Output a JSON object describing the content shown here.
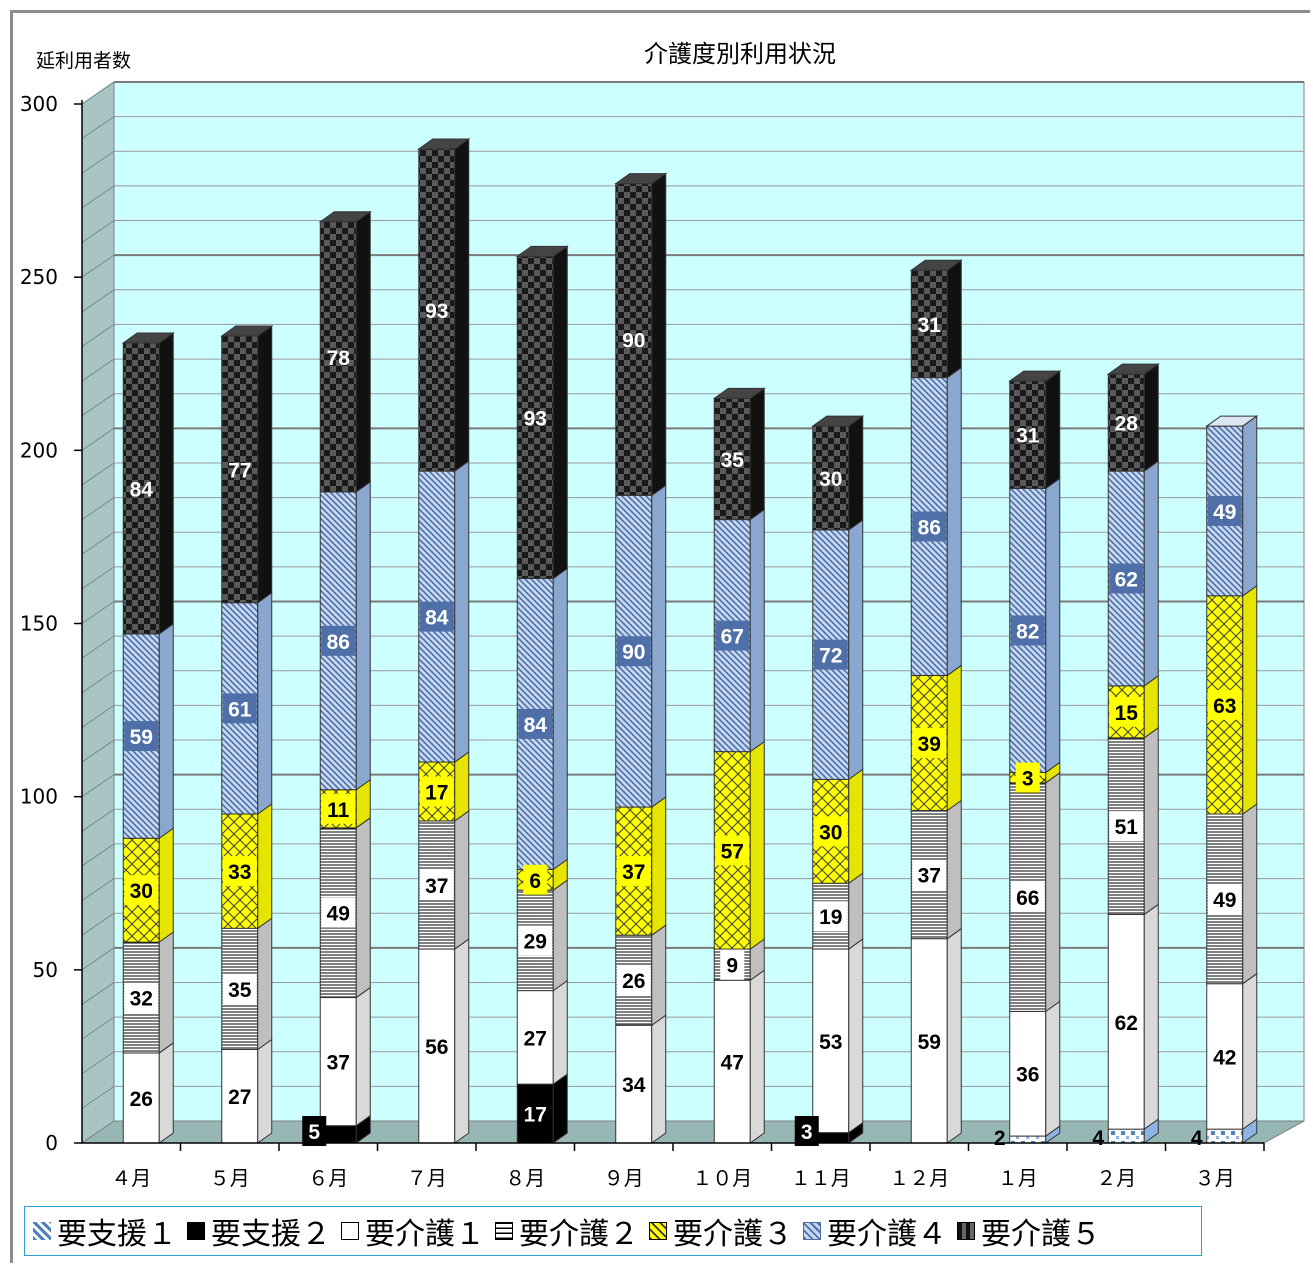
{
  "chart_data": {
    "type": "bar",
    "stacked": true,
    "title": "介護度別利用状況",
    "ylabel": "延利用者数",
    "ylim": [
      0,
      300
    ],
    "yticks": [
      0,
      50,
      100,
      150,
      200,
      250,
      300
    ],
    "grid": true,
    "legend_position": "bottom",
    "categories": [
      "４月",
      "５月",
      "６月",
      "７月",
      "８月",
      "９月",
      "１０月",
      "１１月",
      "１２月",
      "１月",
      "２月",
      "３月"
    ],
    "series": [
      {
        "name": "要支援１",
        "values": [
          0,
          0,
          0,
          0,
          0,
          0,
          0,
          0,
          0,
          2,
          4,
          4
        ],
        "color": "#8fb4e3"
      },
      {
        "name": "要支援２",
        "values": [
          0,
          0,
          5,
          0,
          17,
          0,
          0,
          3,
          0,
          0,
          0,
          0
        ],
        "color": "#000000"
      },
      {
        "name": "要介護１",
        "values": [
          26,
          27,
          37,
          56,
          27,
          34,
          47,
          53,
          59,
          36,
          62,
          42
        ],
        "color": "#ffffff"
      },
      {
        "name": "要介護２",
        "values": [
          32,
          35,
          49,
          37,
          29,
          26,
          9,
          19,
          37,
          66,
          51,
          49
        ],
        "color": "#ffffff"
      },
      {
        "name": "要介護３",
        "values": [
          30,
          33,
          11,
          17,
          6,
          37,
          57,
          30,
          39,
          3,
          15,
          63
        ],
        "color": "#ffff00"
      },
      {
        "name": "要介護４",
        "values": [
          59,
          61,
          86,
          84,
          84,
          90,
          67,
          72,
          86,
          82,
          62,
          49
        ],
        "color": "#b8cce4"
      },
      {
        "name": "要介護５",
        "values": [
          84,
          77,
          78,
          93,
          93,
          90,
          35,
          30,
          31,
          31,
          28,
          0
        ],
        "color": "#262626"
      }
    ]
  },
  "legend": [
    {
      "label": "要支援１",
      "color": "#8fb4e3"
    },
    {
      "label": "要支援２",
      "color": "#000000"
    },
    {
      "label": "要介護１",
      "color": "#ffffff"
    },
    {
      "label": "要介護２",
      "color": "#ffffff"
    },
    {
      "label": "要介護３",
      "color": "#ffff00"
    },
    {
      "label": "要介護４",
      "color": "#b8cce4"
    },
    {
      "label": "要介護５",
      "color": "#262626"
    }
  ],
  "colors": {
    "plot_bg": "#ccffff",
    "wall": "#a8c4c4",
    "floor": "#97b7b7",
    "grid": "#808080",
    "legend_border": "#2aa0d8"
  }
}
